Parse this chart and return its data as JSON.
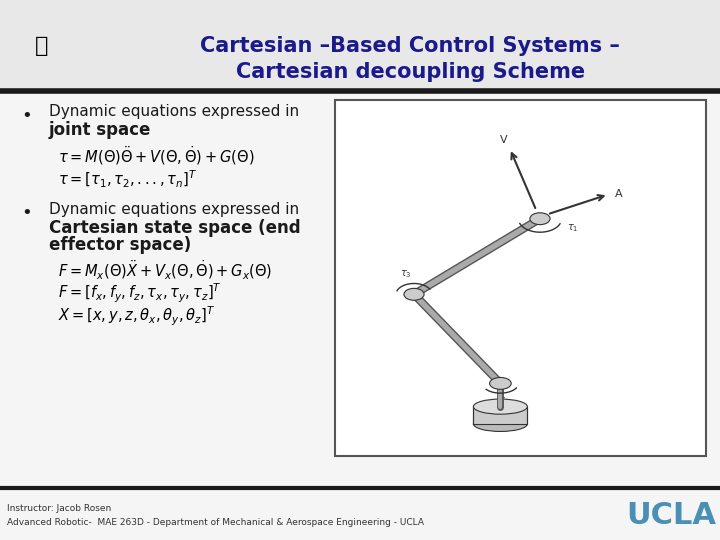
{
  "bg_color": "#f5f5f5",
  "title_line1": "Cartesian –Based Control Systems –",
  "title_line2": "Cartesian decoupling Scheme",
  "title_color": "#1a1a8c",
  "title_fontsize": 15,
  "bullet1_normal": "Dynamic equations expressed in",
  "bullet1_bold": "joint space",
  "bullet2_normal": "Dynamic equations expressed in",
  "bullet2_bold_line1": "Cartesian state space (end",
  "bullet2_bold_line2": "effector space)",
  "footer_left1": "Instructor: Jacob Rosen",
  "footer_left2": "Advanced Robotic-  MAE 263D - Department of Mechanical & Aerospace Engineering - UCLA",
  "footer_right": "UCLA",
  "footer_color": "#4a8fb5",
  "separator_color": "#1a1a1a",
  "eq_color": "#000000",
  "text_color": "#1a1a1a",
  "title_bg_color": "#e8e8e8"
}
